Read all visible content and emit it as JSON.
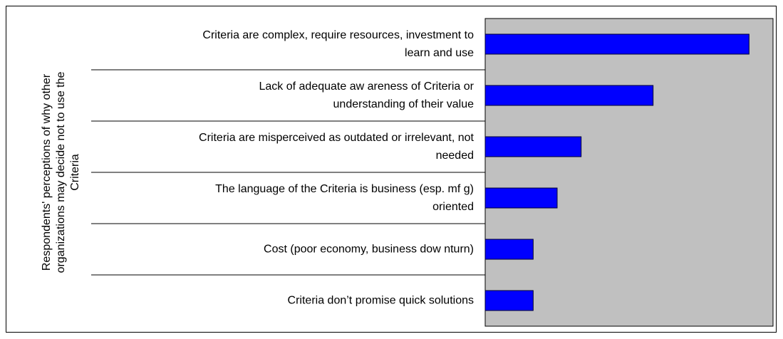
{
  "chart_data": {
    "type": "barh",
    "y_label": "Respondents' perceptions of why other\norganizations may decide not to use the\nCriteria",
    "categories": [
      "Criteria are complex, require resources, investment to\nlearn and use",
      "Lack of adequate aw areness of Criteria or\nunderstanding of their value",
      "Criteria are misperceived as outdated or irrelevant, not\nneeded",
      "The language of the Criteria is business (esp. mf g)\noriented",
      "Cost (poor economy, business dow nturn)",
      "Criteria don’t promise quick solutions"
    ],
    "values": [
      11,
      7,
      4,
      3,
      2,
      2
    ],
    "color": "#0000ff",
    "xlim": [
      0,
      12
    ]
  }
}
